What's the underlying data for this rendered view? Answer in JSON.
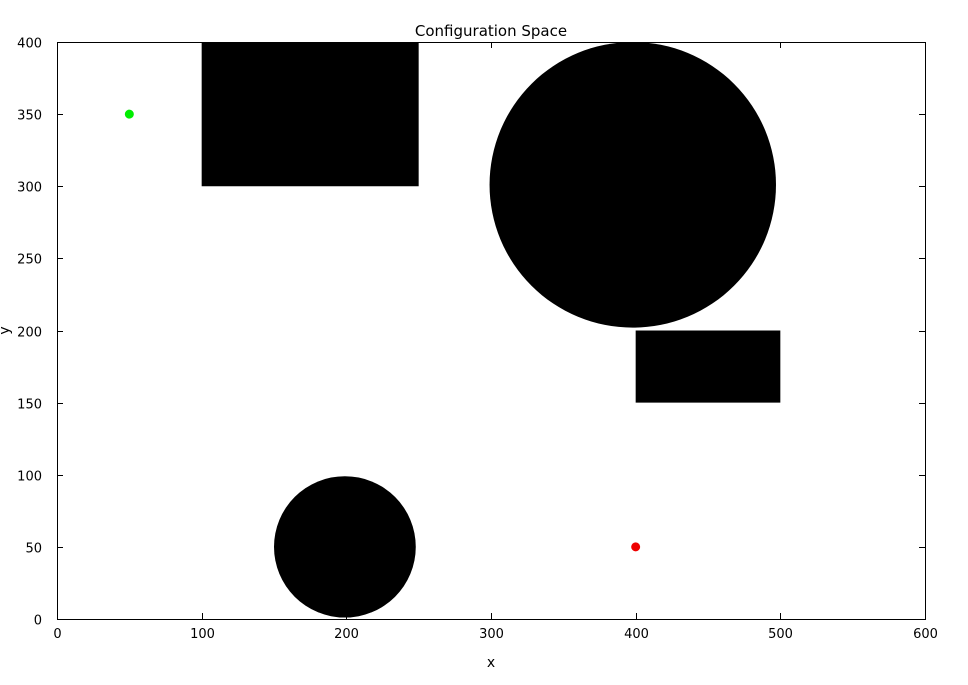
{
  "chart_data": {
    "type": "scatter",
    "title": "Configuration Space",
    "xlabel": "x",
    "ylabel": "y",
    "xlim": [
      0,
      600
    ],
    "ylim": [
      0,
      400
    ],
    "xticks": [
      0,
      100,
      200,
      300,
      400,
      500,
      600
    ],
    "yticks": [
      0,
      50,
      100,
      150,
      200,
      250,
      300,
      350,
      400
    ],
    "grid": false,
    "obstacles": [
      {
        "shape": "rectangle",
        "x_min": 100,
        "x_max": 250,
        "y_min": 300,
        "y_max": 400,
        "color": "#000000"
      },
      {
        "shape": "circle",
        "cx": 398,
        "cy": 301,
        "r": 99,
        "color": "#000000"
      },
      {
        "shape": "rectangle",
        "x_min": 400,
        "x_max": 500,
        "y_min": 150,
        "y_max": 200,
        "color": "#000000"
      },
      {
        "shape": "circle",
        "cx": 199,
        "cy": 50,
        "r": 49,
        "color": "#000000"
      }
    ],
    "points": [
      {
        "x": 50,
        "y": 350,
        "color": "#00ee00"
      },
      {
        "x": 400,
        "y": 50,
        "color": "#ee0000"
      }
    ]
  }
}
